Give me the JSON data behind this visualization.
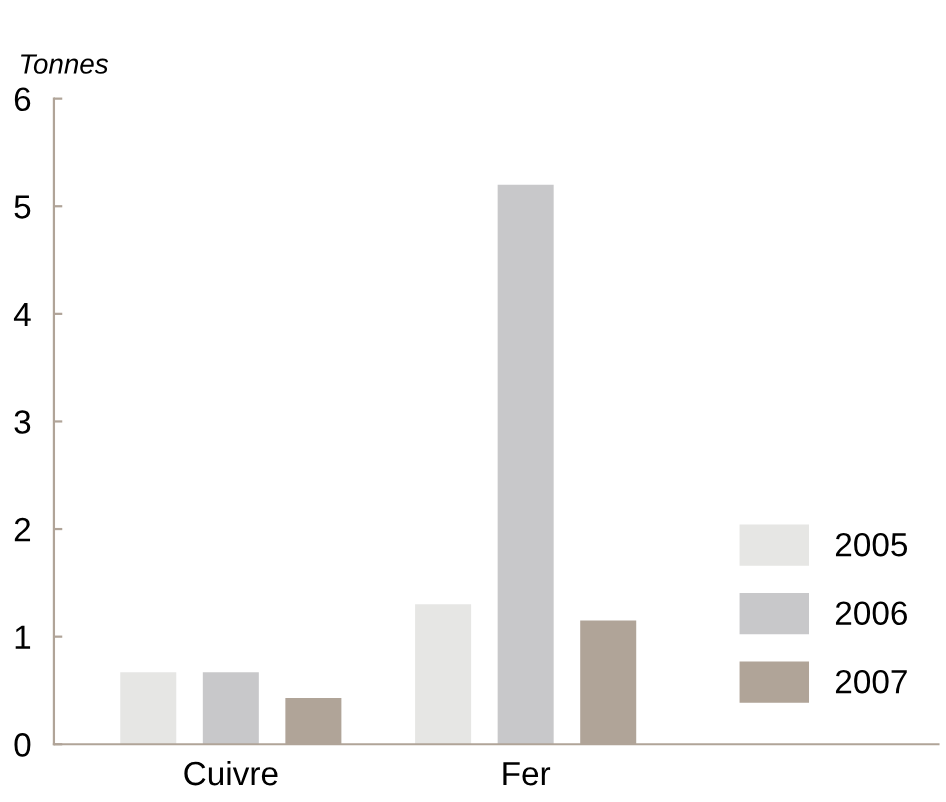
{
  "chart_data": {
    "type": "bar",
    "ylabel": "Tonnes",
    "categories": [
      "Cuivre",
      "Fer"
    ],
    "series": [
      {
        "name": "2005",
        "color": "#e6e6e4",
        "values": [
          0.67,
          1.3
        ]
      },
      {
        "name": "2006",
        "color": "#c8c8ca",
        "values": [
          0.67,
          5.2
        ]
      },
      {
        "name": "2007",
        "color": "#b0a498",
        "values": [
          0.43,
          1.15
        ]
      }
    ],
    "ylim": [
      0,
      6
    ],
    "yticks": [
      0,
      1,
      2,
      3,
      4,
      5,
      6
    ],
    "grid": false,
    "legend": "bottom right"
  }
}
